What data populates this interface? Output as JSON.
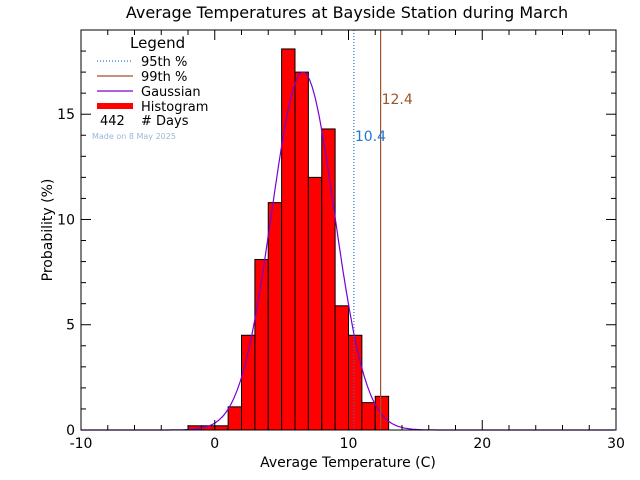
{
  "chart_data": {
    "type": "bar",
    "title": "Average Temperatures at Bayside Station during March",
    "xlabel": "Average Temperature (C)",
    "ylabel": "Probability (%)",
    "xlim": [
      -10,
      30
    ],
    "ylim": [
      0,
      19
    ],
    "xticks": [
      -10,
      0,
      10,
      20,
      30
    ],
    "yticks": [
      0,
      5,
      10,
      15
    ],
    "bin_width": 1,
    "bins": [
      {
        "x0": -2,
        "value": 0.2
      },
      {
        "x0": -1,
        "value": 0.2
      },
      {
        "x0": 0,
        "value": 0.2
      },
      {
        "x0": 1,
        "value": 1.1
      },
      {
        "x0": 2,
        "value": 4.5
      },
      {
        "x0": 3,
        "value": 8.1
      },
      {
        "x0": 4,
        "value": 10.8
      },
      {
        "x0": 5,
        "value": 18.1
      },
      {
        "x0": 6,
        "value": 17.0
      },
      {
        "x0": 7,
        "value": 12.0
      },
      {
        "x0": 8,
        "value": 14.3
      },
      {
        "x0": 9,
        "value": 5.9
      },
      {
        "x0": 10,
        "value": 4.5
      },
      {
        "x0": 11,
        "value": 1.3
      },
      {
        "x0": 12,
        "value": 1.6
      }
    ],
    "gaussian": {
      "mean": 6.6,
      "sigma": 2.35,
      "peak": 17.0
    },
    "percentile_95": {
      "value": 10.4,
      "label": "10.4"
    },
    "percentile_99": {
      "value": 12.4,
      "label": "12.4"
    },
    "legend": {
      "title": "Legend",
      "placement": "top-left",
      "entries": [
        {
          "label": "95th %",
          "style": "dotted",
          "color": "#1f77d4"
        },
        {
          "label": "99th %",
          "style": "solid",
          "color": "#a0522d"
        },
        {
          "label": "Gaussian",
          "style": "solid",
          "color": "#7b00d4"
        },
        {
          "label": "Histogram",
          "style": "thick",
          "color": "#ff0000"
        }
      ],
      "days_count": "442",
      "days_label": "# Days",
      "made_on": "Made on 8 May 2025"
    },
    "colors": {
      "histogram_fill": "#ff0000",
      "gaussian": "#7b00d4",
      "p95": "#1f77d4",
      "p99": "#a0522d",
      "made_on": "#9ab8d8"
    }
  }
}
